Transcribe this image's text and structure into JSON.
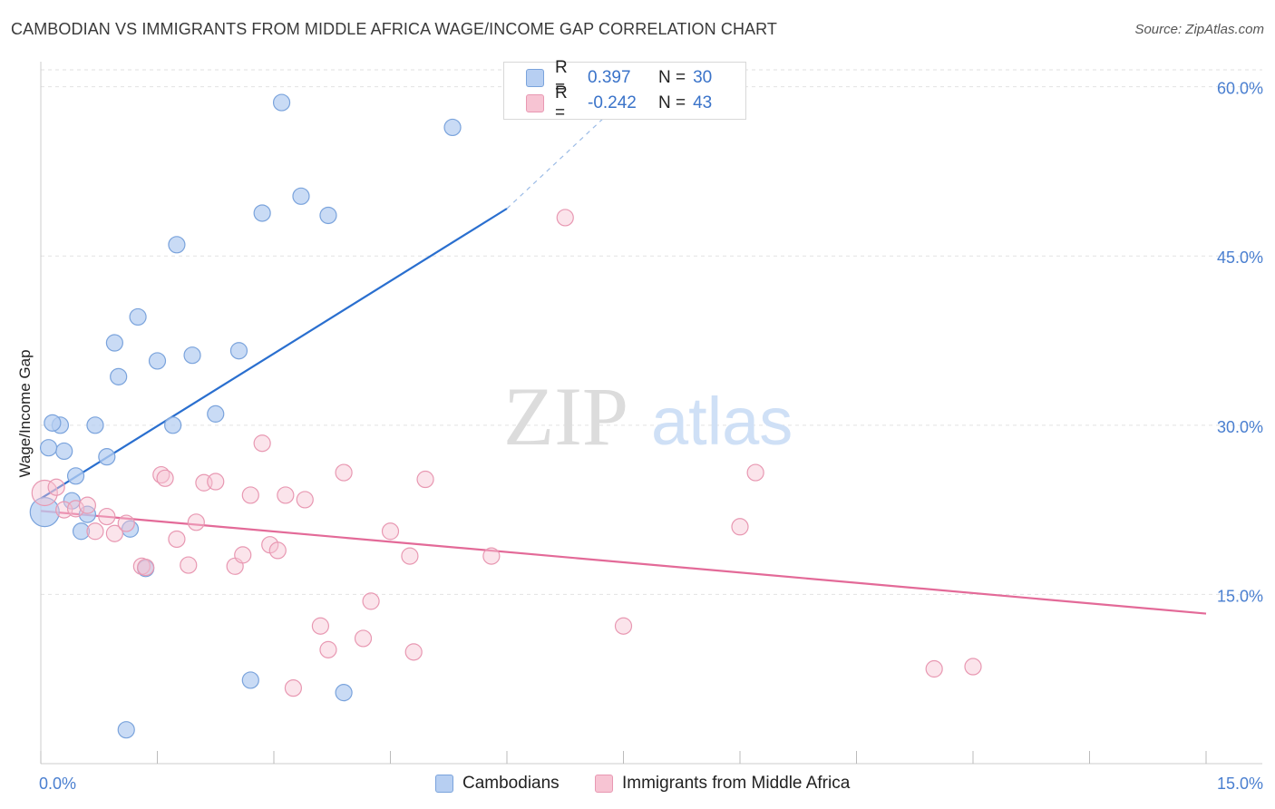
{
  "title": "CAMBODIAN VS IMMIGRANTS FROM MIDDLE AFRICA WAGE/INCOME GAP CORRELATION CHART",
  "source": "Source: ZipAtlas.com",
  "watermark": {
    "zip": "ZIP",
    "atlas": "atlas"
  },
  "colors": {
    "blue_fill": "#b7cff2",
    "blue_stroke": "#7aa3dc",
    "blue_line": "#2a6fcf",
    "pink_fill": "#f7c4d3",
    "pink_stroke": "#e898b2",
    "pink_line": "#e36a98",
    "tick_text": "#4a7fd0",
    "grid": "#e2e2e2"
  },
  "legend": {
    "rows": [
      {
        "r_label": "R =",
        "r_value": "0.397",
        "n_label": "N =",
        "n_value": "30"
      },
      {
        "r_label": "R =",
        "r_value": "-0.242",
        "n_label": "N =",
        "n_value": "43"
      }
    ]
  },
  "bottom_legend": {
    "series1": "Cambodians",
    "series2": "Immigrants from Middle Africa"
  },
  "chart_data": {
    "type": "scatter",
    "title": "CAMBODIAN VS IMMIGRANTS FROM MIDDLE AFRICA WAGE/INCOME GAP CORRELATION CHART",
    "xlabel": "",
    "ylabel": "Wage/Income Gap",
    "xlim": [
      0,
      15
    ],
    "ylim": [
      0,
      61.5
    ],
    "x_tick_labels": [
      {
        "value": 0,
        "label": "0.0%"
      },
      {
        "value": 15,
        "label": "15.0%"
      }
    ],
    "x_tick_marks": [
      0,
      1.5,
      3,
      4.5,
      6,
      7.5,
      9,
      10.5,
      12,
      13.5,
      15
    ],
    "y_ticks": [
      {
        "value": 15,
        "label": "15.0%"
      },
      {
        "value": 30,
        "label": "30.0%"
      },
      {
        "value": 45,
        "label": "45.0%"
      },
      {
        "value": 60,
        "label": "60.0%"
      }
    ],
    "grid": true,
    "series": [
      {
        "name": "Cambodians",
        "color": "#b7cff2",
        "x": [
          0.05,
          0.25,
          0.3,
          0.45,
          0.52,
          0.4,
          0.7,
          0.85,
          0.95,
          1.0,
          1.15,
          1.25,
          1.35,
          1.5,
          1.7,
          1.75,
          1.95,
          2.25,
          2.55,
          2.85,
          3.1,
          3.35,
          3.7,
          3.9,
          5.3,
          0.1,
          0.15,
          0.6,
          1.1,
          2.7
        ],
        "y": [
          22.3,
          30.0,
          27.7,
          25.5,
          20.6,
          23.3,
          30.0,
          27.2,
          37.3,
          34.3,
          20.8,
          39.6,
          17.3,
          35.7,
          30.0,
          46.0,
          36.2,
          31.0,
          36.6,
          48.8,
          58.6,
          50.3,
          48.6,
          6.3,
          56.4,
          28.0,
          30.2,
          22.1,
          3.0,
          7.4
        ],
        "size": [
          16,
          9,
          9,
          9,
          9,
          9,
          9,
          9,
          9,
          9,
          9,
          9,
          9,
          9,
          9,
          9,
          9,
          9,
          9,
          9,
          9,
          9,
          9,
          9,
          9,
          9,
          9,
          9,
          9,
          9
        ],
        "trend": {
          "x": [
            0,
            6.0
          ],
          "y": [
            23.5,
            49.2
          ],
          "dashed_to": {
            "x": 7.8,
            "y": 60.8
          }
        }
      },
      {
        "name": "Immigrants from Middle Africa",
        "color": "#f7c4d3",
        "x": [
          0.05,
          0.2,
          0.3,
          0.45,
          0.6,
          0.7,
          0.85,
          0.95,
          1.1,
          1.3,
          1.35,
          1.55,
          1.6,
          1.75,
          1.9,
          2.0,
          2.1,
          2.25,
          2.5,
          2.6,
          2.7,
          2.85,
          2.95,
          3.05,
          3.15,
          3.25,
          3.4,
          3.6,
          3.7,
          3.9,
          4.15,
          4.25,
          4.5,
          4.75,
          4.8,
          4.95,
          5.8,
          6.75,
          7.5,
          9.0,
          9.2,
          11.5,
          12.0
        ],
        "y": [
          24.0,
          24.5,
          22.5,
          22.6,
          22.9,
          20.6,
          21.9,
          20.4,
          21.3,
          17.5,
          17.4,
          25.6,
          25.3,
          19.9,
          17.6,
          21.4,
          24.9,
          25.0,
          17.5,
          18.5,
          23.8,
          28.4,
          19.4,
          18.9,
          23.8,
          6.7,
          23.4,
          12.2,
          10.1,
          25.8,
          11.1,
          14.4,
          20.6,
          18.4,
          9.9,
          25.2,
          18.4,
          48.4,
          12.2,
          21.0,
          25.8,
          8.4,
          8.6
        ],
        "size": [
          14,
          9,
          9,
          9,
          9,
          9,
          9,
          9,
          9,
          9,
          9,
          9,
          9,
          9,
          9,
          9,
          9,
          9,
          9,
          9,
          9,
          9,
          9,
          9,
          9,
          9,
          9,
          9,
          9,
          9,
          9,
          9,
          9,
          9,
          9,
          9,
          9,
          9,
          9,
          9,
          9,
          9,
          9
        ],
        "trend": {
          "x": [
            0,
            15
          ],
          "y": [
            22.4,
            13.3
          ]
        }
      }
    ]
  }
}
